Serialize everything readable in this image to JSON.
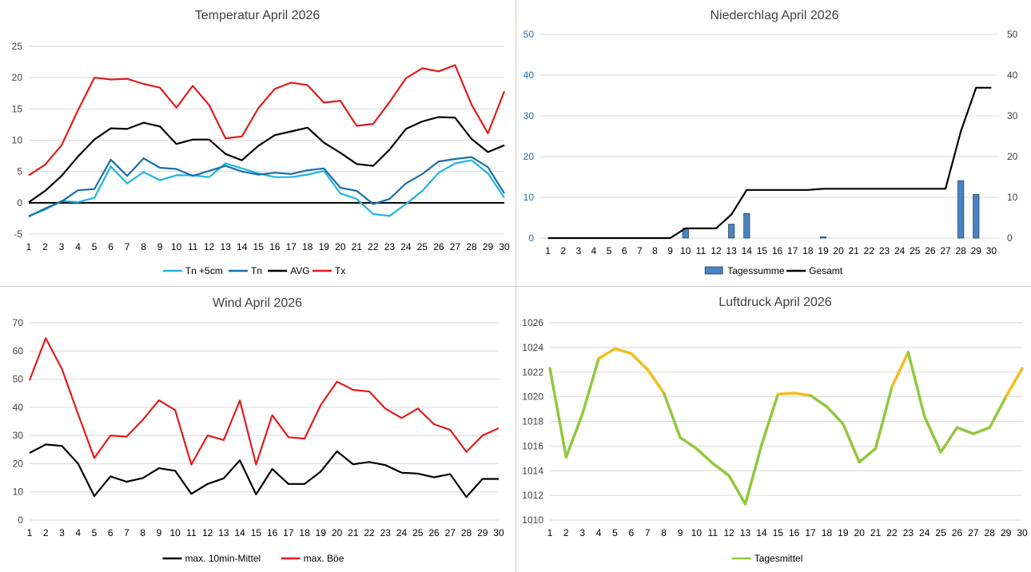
{
  "chart_data": [
    {
      "id": "temp",
      "type": "line",
      "title": "Temperatur April 2026",
      "categories": [
        "1",
        "2",
        "3",
        "4",
        "5",
        "6",
        "7",
        "8",
        "9",
        "10",
        "11",
        "12",
        "13",
        "14",
        "15",
        "16",
        "17",
        "18",
        "19",
        "20",
        "21",
        "22",
        "23",
        "24",
        "25",
        "26",
        "27",
        "28",
        "29",
        "30"
      ],
      "ylim": [
        -5,
        25
      ],
      "yticks": [
        -5,
        0,
        5,
        10,
        15,
        20,
        25
      ],
      "grid": true,
      "legend_position": "bottom",
      "series": [
        {
          "name": "Tn +5cm",
          "color": "#1fb4e3",
          "values": [
            -2.1,
            -1.1,
            0.3,
            0.1,
            0.8,
            5.8,
            3.1,
            4.9,
            3.6,
            4.4,
            4.4,
            4.1,
            6.3,
            5.5,
            4.7,
            4.1,
            4.1,
            4.5,
            5.1,
            1.5,
            0.6,
            -1.8,
            -2.1,
            -0.2,
            1.9,
            4.8,
            6.3,
            6.8,
            4.7,
            0.8
          ]
        },
        {
          "name": "Tn",
          "color": "#1a6fa8",
          "values": [
            -2.2,
            -0.9,
            0.2,
            2.0,
            2.2,
            6.9,
            4.3,
            7.1,
            5.6,
            5.4,
            4.3,
            5.1,
            5.9,
            5.0,
            4.5,
            4.8,
            4.6,
            5.2,
            5.5,
            2.4,
            1.9,
            -0.2,
            0.6,
            3.1,
            4.6,
            6.6,
            7.0,
            7.3,
            5.7,
            1.5
          ]
        },
        {
          "name": "AVG",
          "color": "#000000",
          "values": [
            0.1,
            1.9,
            4.3,
            7.4,
            10.1,
            11.9,
            11.8,
            12.8,
            12.2,
            9.4,
            10.1,
            10.1,
            7.8,
            6.8,
            9.1,
            10.8,
            11.4,
            12.0,
            9.6,
            8.0,
            6.2,
            5.9,
            8.5,
            11.8,
            13.0,
            13.7,
            13.6,
            10.2,
            8.1,
            9.2
          ]
        },
        {
          "name": "Tx",
          "color": "#e01c1c",
          "values": [
            4.4,
            6.1,
            9.2,
            14.8,
            20.0,
            19.7,
            19.8,
            19.0,
            18.4,
            15.2,
            18.7,
            15.6,
            10.3,
            10.6,
            15.1,
            18.2,
            19.2,
            18.8,
            16.0,
            16.3,
            12.3,
            12.6,
            16.1,
            19.9,
            21.5,
            21.0,
            22.0,
            15.7,
            11.1,
            17.8
          ]
        }
      ]
    },
    {
      "id": "rain",
      "type": "bar",
      "title": "Niederchlag April 2026",
      "categories": [
        "1",
        "2",
        "3",
        "4",
        "5",
        "6",
        "7",
        "8",
        "9",
        "10",
        "11",
        "12",
        "13",
        "14",
        "15",
        "16",
        "17",
        "18",
        "19",
        "20",
        "21",
        "22",
        "23",
        "24",
        "25",
        "26",
        "27",
        "28",
        "29",
        "30"
      ],
      "ylim": [
        0,
        50
      ],
      "yticks": [
        0,
        10,
        20,
        30,
        40,
        50
      ],
      "secondary_ylim": [
        0,
        50
      ],
      "secondary_yticks": [
        0,
        10,
        20,
        30,
        40,
        50
      ],
      "axis_label_color": "#1f6db0",
      "grid": true,
      "legend_position": "bottom",
      "series": [
        {
          "name": "Tagessumme",
          "kind": "bar",
          "color": "#4a83c4",
          "values": [
            0,
            0,
            0,
            0,
            0,
            0,
            0,
            0,
            0,
            2.4,
            0,
            0,
            3.4,
            6.0,
            0,
            0,
            0,
            0,
            0.3,
            0,
            0,
            0,
            0,
            0,
            0,
            0,
            0,
            14.1,
            10.7,
            0
          ]
        },
        {
          "name": "Gesamt",
          "kind": "line",
          "color": "#000000",
          "values": [
            0,
            0,
            0,
            0,
            0,
            0,
            0,
            0,
            0,
            2.4,
            2.4,
            2.4,
            5.8,
            11.8,
            11.8,
            11.8,
            11.8,
            11.8,
            12.1,
            12.1,
            12.1,
            12.1,
            12.1,
            12.1,
            12.1,
            12.1,
            12.1,
            26.2,
            36.9,
            36.9
          ]
        }
      ]
    },
    {
      "id": "wind",
      "type": "line",
      "title": "Wind April 2026",
      "categories": [
        "1",
        "2",
        "3",
        "4",
        "5",
        "6",
        "7",
        "8",
        "9",
        "10",
        "11",
        "12",
        "13",
        "14",
        "15",
        "16",
        "17",
        "18",
        "19",
        "20",
        "21",
        "22",
        "23",
        "24",
        "25",
        "26",
        "27",
        "28",
        "29",
        "30"
      ],
      "ylim": [
        0,
        70
      ],
      "yticks": [
        0,
        10,
        20,
        30,
        40,
        50,
        60,
        70
      ],
      "grid": true,
      "legend_position": "bottom",
      "series": [
        {
          "name": "max. 10min-Mittel",
          "color": "#000000",
          "values": [
            23.8,
            26.8,
            26.3,
            20.0,
            8.5,
            15.5,
            13.6,
            14.9,
            18.4,
            17.5,
            9.3,
            12.8,
            14.8,
            21.2,
            9.1,
            18.1,
            12.8,
            12.8,
            17.2,
            24.4,
            19.8,
            20.6,
            19.5,
            16.8,
            16.5,
            15.2,
            16.3,
            8.2,
            14.6,
            14.6
          ]
        },
        {
          "name": "max. Böe",
          "color": "#e01c1c",
          "values": [
            49.6,
            64.5,
            53.6,
            37.6,
            22.0,
            30.0,
            29.6,
            35.6,
            42.5,
            39.0,
            19.7,
            30.0,
            28.4,
            42.4,
            19.7,
            37.2,
            29.4,
            28.9,
            40.8,
            49.1,
            46.2,
            45.6,
            39.5,
            36.2,
            39.6,
            34.0,
            32.0,
            24.2,
            30.0,
            32.6
          ]
        }
      ]
    },
    {
      "id": "pressure",
      "type": "line",
      "title": "Luftdruck April 2026",
      "categories": [
        "1",
        "2",
        "3",
        "4",
        "5",
        "6",
        "7",
        "8",
        "9",
        "10",
        "11",
        "12",
        "13",
        "14",
        "15",
        "16",
        "17",
        "18",
        "19",
        "20",
        "21",
        "22",
        "23",
        "24",
        "25",
        "26",
        "27",
        "28",
        "29",
        "30"
      ],
      "ylim": [
        1010,
        1026
      ],
      "yticks": [
        1010,
        1012,
        1014,
        1016,
        1018,
        1020,
        1022,
        1024,
        1026
      ],
      "grid": true,
      "legend_position": "bottom",
      "series": [
        {
          "name": "Tagesmittel",
          "color": "#92c83e",
          "highlight_color": "#f2bd1c",
          "highlight_above": 1020,
          "values": [
            1022.3,
            1015.1,
            1018.6,
            1023.1,
            1023.9,
            1023.5,
            1022.2,
            1020.3,
            1016.7,
            1015.8,
            1014.6,
            1013.6,
            1011.3,
            1016.1,
            1020.2,
            1020.3,
            1020.1,
            1019.2,
            1017.8,
            1014.7,
            1015.8,
            1020.8,
            1023.6,
            1018.4,
            1015.5,
            1017.5,
            1017.0,
            1017.5,
            1020.0,
            1022.3
          ]
        }
      ]
    }
  ]
}
